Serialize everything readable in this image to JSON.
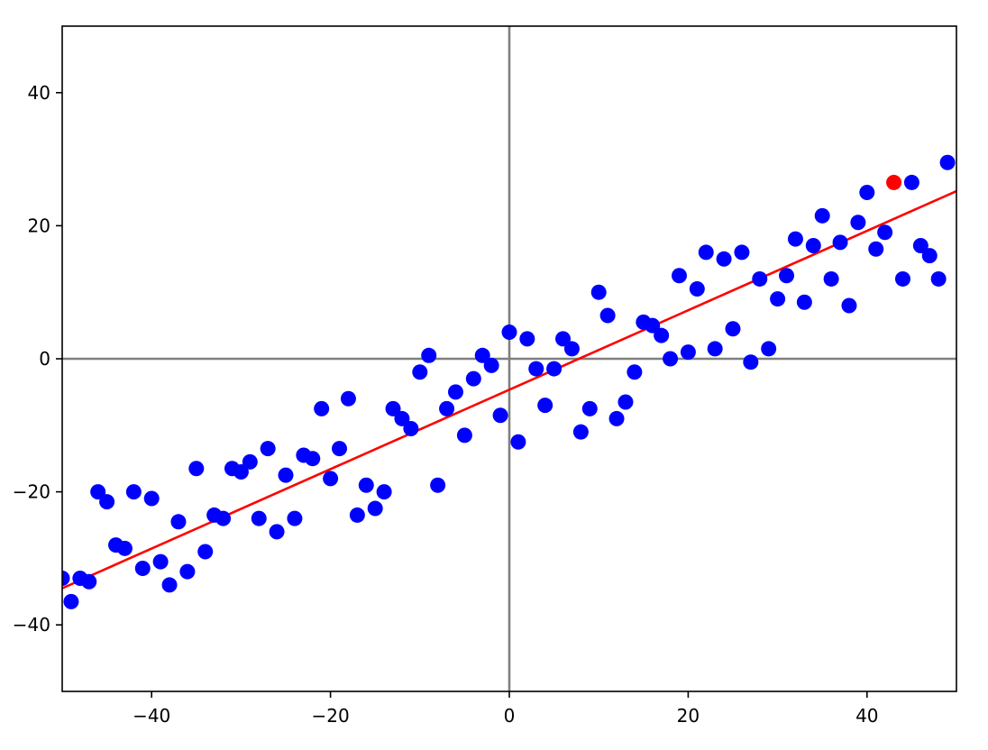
{
  "chart_data": {
    "type": "scatter",
    "title": "",
    "xlabel": "",
    "ylabel": "",
    "xlim": [
      -50,
      50
    ],
    "ylim": [
      -50,
      50
    ],
    "xticks": [
      -40,
      -20,
      0,
      20,
      40
    ],
    "yticks": [
      -40,
      -20,
      0,
      20,
      40
    ],
    "xtick_labels": [
      "−40",
      "−20",
      "0",
      "20",
      "40"
    ],
    "ytick_labels": [
      "−40",
      "−20",
      "0",
      "20",
      "40"
    ],
    "grid": false,
    "reference_lines": {
      "x": 0,
      "y": 0,
      "color": "#808080"
    },
    "colors": {
      "points": "#0000ff",
      "highlight": "#ff0000",
      "fit_line": "#ff0000",
      "axes": "#000000"
    },
    "fit_line": {
      "x": [
        -50,
        50
      ],
      "y": [
        -34.5,
        25.2
      ]
    },
    "highlight_point": {
      "x": 43,
      "y": 26.5
    },
    "points": [
      [
        -50,
        -33
      ],
      [
        -49,
        -36.5
      ],
      [
        -48,
        -33
      ],
      [
        -47,
        -33.5
      ],
      [
        -46,
        -20
      ],
      [
        -45,
        -21.5
      ],
      [
        -44,
        -28
      ],
      [
        -43,
        -28.5
      ],
      [
        -42,
        -20
      ],
      [
        -41,
        -31.5
      ],
      [
        -40,
        -21
      ],
      [
        -39,
        -30.5
      ],
      [
        -38,
        -34
      ],
      [
        -37,
        -24.5
      ],
      [
        -36,
        -32
      ],
      [
        -35,
        -16.5
      ],
      [
        -34,
        -29
      ],
      [
        -33,
        -23.5
      ],
      [
        -32,
        -24
      ],
      [
        -31,
        -16.5
      ],
      [
        -30,
        -17
      ],
      [
        -29,
        -15.5
      ],
      [
        -28,
        -24
      ],
      [
        -27,
        -13.5
      ],
      [
        -26,
        -26
      ],
      [
        -25,
        -17.5
      ],
      [
        -24,
        -24
      ],
      [
        -23,
        -14.5
      ],
      [
        -22,
        -15
      ],
      [
        -21,
        -7.5
      ],
      [
        -20,
        -18
      ],
      [
        -19,
        -13.5
      ],
      [
        -18,
        -6
      ],
      [
        -17,
        -23.5
      ],
      [
        -16,
        -19
      ],
      [
        -15,
        -22.5
      ],
      [
        -14,
        -20
      ],
      [
        -13,
        -7.5
      ],
      [
        -12,
        -9
      ],
      [
        -11,
        -10.5
      ],
      [
        -10,
        -2
      ],
      [
        -9,
        0.5
      ],
      [
        -8,
        -19
      ],
      [
        -7,
        -7.5
      ],
      [
        -6,
        -5
      ],
      [
        -5,
        -11.5
      ],
      [
        -4,
        -3
      ],
      [
        -3,
        0.5
      ],
      [
        -2,
        -1
      ],
      [
        -1,
        -8.5
      ],
      [
        0,
        4
      ],
      [
        1,
        -12.5
      ],
      [
        2,
        3
      ],
      [
        3,
        -1.5
      ],
      [
        4,
        -7
      ],
      [
        5,
        -1.5
      ],
      [
        6,
        3
      ],
      [
        7,
        1.5
      ],
      [
        8,
        -11
      ],
      [
        9,
        -7.5
      ],
      [
        10,
        10
      ],
      [
        11,
        6.5
      ],
      [
        12,
        -9
      ],
      [
        13,
        -6.5
      ],
      [
        14,
        -2
      ],
      [
        15,
        5.5
      ],
      [
        16,
        5
      ],
      [
        17,
        3.5
      ],
      [
        18,
        0
      ],
      [
        19,
        12.5
      ],
      [
        20,
        1
      ],
      [
        21,
        10.5
      ],
      [
        22,
        16
      ],
      [
        23,
        1.5
      ],
      [
        24,
        15
      ],
      [
        25,
        4.5
      ],
      [
        26,
        16
      ],
      [
        27,
        -0.5
      ],
      [
        28,
        12
      ],
      [
        29,
        1.5
      ],
      [
        30,
        9
      ],
      [
        31,
        12.5
      ],
      [
        32,
        18
      ],
      [
        33,
        8.5
      ],
      [
        34,
        17
      ],
      [
        35,
        21.5
      ],
      [
        36,
        12
      ],
      [
        37,
        17.5
      ],
      [
        38,
        8
      ],
      [
        39,
        20.5
      ],
      [
        40,
        25
      ],
      [
        41,
        16.5
      ],
      [
        42,
        19
      ],
      [
        44,
        12
      ],
      [
        45,
        26.5
      ],
      [
        46,
        17
      ],
      [
        47,
        15.5
      ],
      [
        48,
        12
      ],
      [
        49,
        29.5
      ]
    ]
  }
}
